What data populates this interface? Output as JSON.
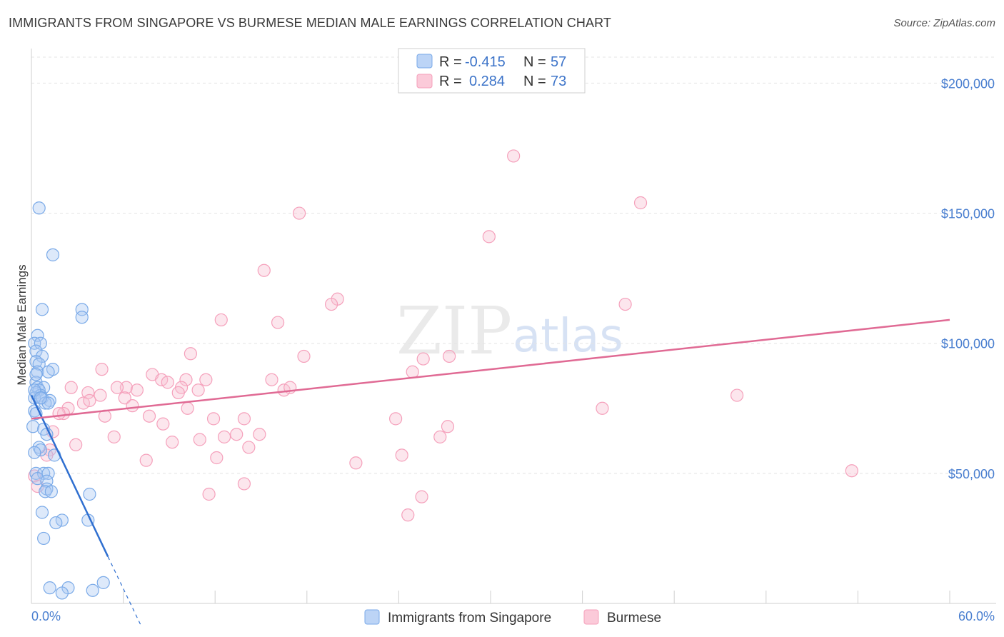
{
  "chart_data": {
    "type": "scatter",
    "title": "IMMIGRANTS FROM SINGAPORE VS BURMESE MEDIAN MALE EARNINGS CORRELATION CHART",
    "source": "Source: ZipAtlas.com",
    "ylabel": "Median Male Earnings",
    "xlim": [
      0,
      60
    ],
    "ylim": [
      0,
      210000
    ],
    "x_tick_labels": [
      "0.0%",
      "60.0%"
    ],
    "y_ticks": [
      {
        "value": 50000,
        "label": "$50,000"
      },
      {
        "value": 100000,
        "label": "$100,000"
      },
      {
        "value": 150000,
        "label": "$150,000"
      },
      {
        "value": 200000,
        "label": "$200,000"
      }
    ],
    "watermark": {
      "zip": "ZIP",
      "atlas": "atlas"
    },
    "legend": [
      {
        "r_label": "R =",
        "r_value": "-0.415",
        "n_label": "N =",
        "n_value": "57"
      },
      {
        "r_label": "R =",
        "r_value": "0.284",
        "n_label": "N =",
        "n_value": "73"
      }
    ],
    "series": [
      {
        "name": "Immigrants from Singapore",
        "color": "#7aaae8",
        "line_color": "#2f6fd0",
        "trend": {
          "x0": 0.0,
          "y0": 80000,
          "x1": 5.0,
          "y1": 18000,
          "dash_to_x": 7.2,
          "dash_to_y": -9000
        },
        "points": [
          [
            0.5,
            152000
          ],
          [
            1.4,
            134000
          ],
          [
            0.7,
            113000
          ],
          [
            3.3,
            113000
          ],
          [
            3.3,
            110000
          ],
          [
            0.4,
            103000
          ],
          [
            0.2,
            100000
          ],
          [
            0.6,
            100000
          ],
          [
            0.3,
            97000
          ],
          [
            0.7,
            95000
          ],
          [
            0.3,
            93000
          ],
          [
            0.5,
            92000
          ],
          [
            1.4,
            90000
          ],
          [
            0.4,
            89000
          ],
          [
            1.1,
            89000
          ],
          [
            0.3,
            85000
          ],
          [
            0.4,
            83000
          ],
          [
            0.8,
            83000
          ],
          [
            0.5,
            82000
          ],
          [
            0.3,
            81000
          ],
          [
            0.6,
            80000
          ],
          [
            0.2,
            79000
          ],
          [
            0.7,
            79000
          ],
          [
            1.2,
            78000
          ],
          [
            0.9,
            77000
          ],
          [
            1.1,
            77000
          ],
          [
            0.2,
            74000
          ],
          [
            0.3,
            73000
          ],
          [
            0.1,
            68000
          ],
          [
            0.8,
            67000
          ],
          [
            1.0,
            65000
          ],
          [
            0.5,
            60000
          ],
          [
            0.6,
            59000
          ],
          [
            0.2,
            58000
          ],
          [
            1.5,
            57000
          ],
          [
            0.3,
            50000
          ],
          [
            0.8,
            50000
          ],
          [
            1.1,
            50000
          ],
          [
            0.4,
            48000
          ],
          [
            1.0,
            47000
          ],
          [
            1.0,
            44000
          ],
          [
            0.9,
            43000
          ],
          [
            1.3,
            43000
          ],
          [
            3.8,
            42000
          ],
          [
            0.7,
            35000
          ],
          [
            3.7,
            32000
          ],
          [
            2.0,
            32000
          ],
          [
            1.6,
            31000
          ],
          [
            0.8,
            25000
          ],
          [
            2.4,
            6000
          ],
          [
            1.2,
            6000
          ],
          [
            4.7,
            8000
          ],
          [
            4.0,
            5000
          ],
          [
            2.0,
            4000
          ],
          [
            0.3,
            88000
          ],
          [
            0.2,
            82000
          ],
          [
            0.6,
            79000
          ]
        ]
      },
      {
        "name": "Burmese",
        "color": "#f5a0bb",
        "line_color": "#e06a94",
        "trend": {
          "x0": 0.0,
          "y0": 71000,
          "x1": 60.0,
          "y1": 109000
        },
        "points": [
          [
            31.5,
            172000
          ],
          [
            39.8,
            154000
          ],
          [
            17.5,
            150000
          ],
          [
            29.9,
            141000
          ],
          [
            15.2,
            128000
          ],
          [
            20.0,
            117000
          ],
          [
            19.6,
            115000
          ],
          [
            38.8,
            115000
          ],
          [
            12.4,
            109000
          ],
          [
            16.1,
            108000
          ],
          [
            10.4,
            96000
          ],
          [
            17.8,
            95000
          ],
          [
            25.6,
            94000
          ],
          [
            27.3,
            95000
          ],
          [
            4.6,
            90000
          ],
          [
            24.9,
            89000
          ],
          [
            7.9,
            88000
          ],
          [
            10.1,
            86000
          ],
          [
            11.4,
            86000
          ],
          [
            8.5,
            86000
          ],
          [
            15.7,
            86000
          ],
          [
            8.9,
            85000
          ],
          [
            2.6,
            83000
          ],
          [
            9.8,
            83000
          ],
          [
            6.2,
            83000
          ],
          [
            5.6,
            83000
          ],
          [
            10.9,
            82000
          ],
          [
            6.9,
            82000
          ],
          [
            16.5,
            82000
          ],
          [
            3.7,
            81000
          ],
          [
            16.9,
            83000
          ],
          [
            4.5,
            80000
          ],
          [
            9.6,
            81000
          ],
          [
            46.1,
            80000
          ],
          [
            6.1,
            79000
          ],
          [
            3.4,
            77000
          ],
          [
            3.8,
            78000
          ],
          [
            6.6,
            76000
          ],
          [
            2.4,
            75000
          ],
          [
            2.1,
            73000
          ],
          [
            37.3,
            75000
          ],
          [
            10.2,
            75000
          ],
          [
            1.8,
            73000
          ],
          [
            4.8,
            72000
          ],
          [
            7.7,
            72000
          ],
          [
            13.9,
            71000
          ],
          [
            11.9,
            71000
          ],
          [
            23.8,
            71000
          ],
          [
            8.6,
            69000
          ],
          [
            27.2,
            68000
          ],
          [
            1.4,
            66000
          ],
          [
            5.4,
            64000
          ],
          [
            13.4,
            65000
          ],
          [
            14.9,
            65000
          ],
          [
            12.6,
            64000
          ],
          [
            26.7,
            64000
          ],
          [
            11.0,
            63000
          ],
          [
            2.9,
            61000
          ],
          [
            9.2,
            62000
          ],
          [
            1.2,
            59000
          ],
          [
            14.2,
            60000
          ],
          [
            1.0,
            57000
          ],
          [
            24.2,
            57000
          ],
          [
            12.1,
            56000
          ],
          [
            7.5,
            55000
          ],
          [
            21.2,
            54000
          ],
          [
            53.6,
            51000
          ],
          [
            0.2,
            49000
          ],
          [
            13.9,
            46000
          ],
          [
            11.6,
            42000
          ],
          [
            25.5,
            41000
          ],
          [
            24.6,
            34000
          ],
          [
            0.4,
            45000
          ]
        ]
      }
    ]
  }
}
